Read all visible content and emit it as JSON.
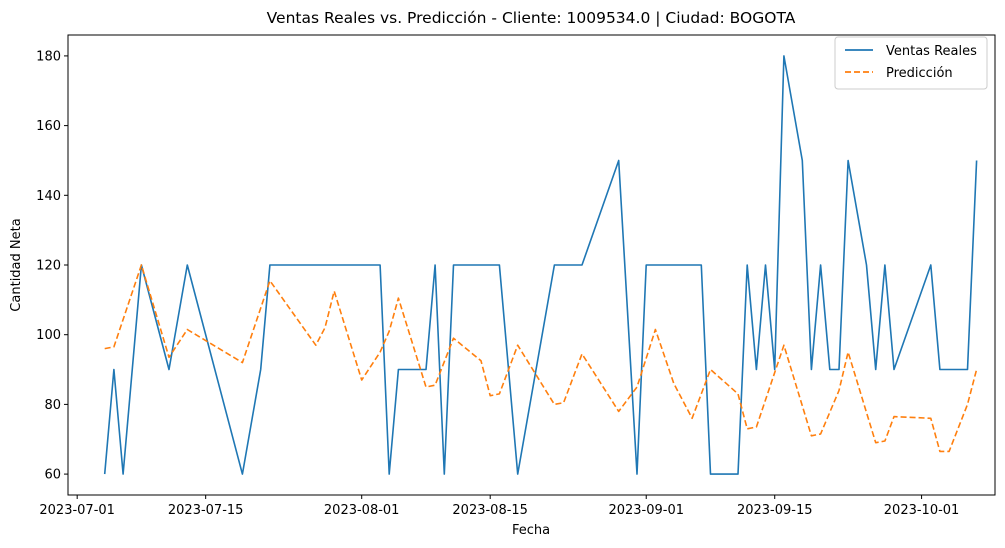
{
  "chart_data": {
    "type": "line",
    "title": "Ventas Reales vs. Predicción - Cliente: 1009534.0 | Ciudad: BOGOTA",
    "xlabel": "Fecha",
    "ylabel": "Cantidad Neta",
    "x_range": [
      "2023-06-30",
      "2023-10-09"
    ],
    "ylim": [
      54,
      186
    ],
    "x_ticks": [
      "2023-07-01",
      "2023-07-15",
      "2023-08-01",
      "2023-08-15",
      "2023-09-01",
      "2023-09-15",
      "2023-10-01"
    ],
    "y_ticks": [
      60,
      80,
      100,
      120,
      140,
      160,
      180
    ],
    "grid": false,
    "legend_position": "top-right",
    "series": [
      {
        "name": "Ventas Reales",
        "color": "#1f77b4",
        "style": "solid",
        "points": [
          [
            "2023-07-04",
            60
          ],
          [
            "2023-07-05",
            90
          ],
          [
            "2023-07-06",
            60
          ],
          [
            "2023-07-08",
            120
          ],
          [
            "2023-07-11",
            90
          ],
          [
            "2023-07-13",
            120
          ],
          [
            "2023-07-19",
            60
          ],
          [
            "2023-07-21",
            90
          ],
          [
            "2023-07-22",
            120
          ],
          [
            "2023-08-03",
            120
          ],
          [
            "2023-08-04",
            60
          ],
          [
            "2023-08-05",
            90
          ],
          [
            "2023-08-08",
            90
          ],
          [
            "2023-08-09",
            120
          ],
          [
            "2023-08-10",
            60
          ],
          [
            "2023-08-11",
            120
          ],
          [
            "2023-08-16",
            120
          ],
          [
            "2023-08-18",
            60
          ],
          [
            "2023-08-22",
            120
          ],
          [
            "2023-08-25",
            120
          ],
          [
            "2023-08-29",
            150
          ],
          [
            "2023-08-31",
            60
          ],
          [
            "2023-09-01",
            120
          ],
          [
            "2023-09-07",
            120
          ],
          [
            "2023-09-08",
            60
          ],
          [
            "2023-09-11",
            60
          ],
          [
            "2023-09-12",
            120
          ],
          [
            "2023-09-13",
            90
          ],
          [
            "2023-09-14",
            120
          ],
          [
            "2023-09-15",
            90
          ],
          [
            "2023-09-16",
            180
          ],
          [
            "2023-09-18",
            150
          ],
          [
            "2023-09-19",
            90
          ],
          [
            "2023-09-20",
            120
          ],
          [
            "2023-09-21",
            90
          ],
          [
            "2023-09-22",
            90
          ],
          [
            "2023-09-23",
            150
          ],
          [
            "2023-09-25",
            120
          ],
          [
            "2023-09-26",
            90
          ],
          [
            "2023-09-27",
            120
          ],
          [
            "2023-09-28",
            90
          ],
          [
            "2023-10-02",
            120
          ],
          [
            "2023-10-03",
            90
          ],
          [
            "2023-10-06",
            90
          ],
          [
            "2023-10-07",
            150
          ]
        ]
      },
      {
        "name": "Predicción",
        "color": "#ff7f0e",
        "style": "dashed",
        "points": [
          [
            "2023-07-04",
            96
          ],
          [
            "2023-07-05",
            96.5
          ],
          [
            "2023-07-08",
            120
          ],
          [
            "2023-07-11",
            93.5
          ],
          [
            "2023-07-13",
            101.5
          ],
          [
            "2023-07-19",
            92
          ],
          [
            "2023-07-22",
            115.5
          ],
          [
            "2023-07-27",
            97
          ],
          [
            "2023-07-28",
            102
          ],
          [
            "2023-07-29",
            112.5
          ],
          [
            "2023-08-01",
            87
          ],
          [
            "2023-08-03",
            95
          ],
          [
            "2023-08-04",
            101
          ],
          [
            "2023-08-05",
            110.5
          ],
          [
            "2023-08-08",
            85
          ],
          [
            "2023-08-09",
            85.5
          ],
          [
            "2023-08-11",
            99
          ],
          [
            "2023-08-14",
            92.5
          ],
          [
            "2023-08-15",
            82.5
          ],
          [
            "2023-08-16",
            83
          ],
          [
            "2023-08-18",
            97
          ],
          [
            "2023-08-22",
            80
          ],
          [
            "2023-08-23",
            80.5
          ],
          [
            "2023-08-25",
            94.5
          ],
          [
            "2023-08-29",
            78
          ],
          [
            "2023-08-31",
            85
          ],
          [
            "2023-09-02",
            101.5
          ],
          [
            "2023-09-04",
            86
          ],
          [
            "2023-09-06",
            76
          ],
          [
            "2023-09-08",
            90
          ],
          [
            "2023-09-11",
            83
          ],
          [
            "2023-09-12",
            73
          ],
          [
            "2023-09-13",
            73.5
          ],
          [
            "2023-09-16",
            97
          ],
          [
            "2023-09-19",
            71
          ],
          [
            "2023-09-20",
            71.5
          ],
          [
            "2023-09-22",
            84
          ],
          [
            "2023-09-23",
            95
          ],
          [
            "2023-09-26",
            69
          ],
          [
            "2023-09-27",
            69.5
          ],
          [
            "2023-09-28",
            76.5
          ],
          [
            "2023-10-02",
            76
          ],
          [
            "2023-10-03",
            66.5
          ],
          [
            "2023-10-04",
            66.5
          ],
          [
            "2023-10-06",
            80
          ],
          [
            "2023-10-07",
            90
          ]
        ]
      }
    ]
  }
}
